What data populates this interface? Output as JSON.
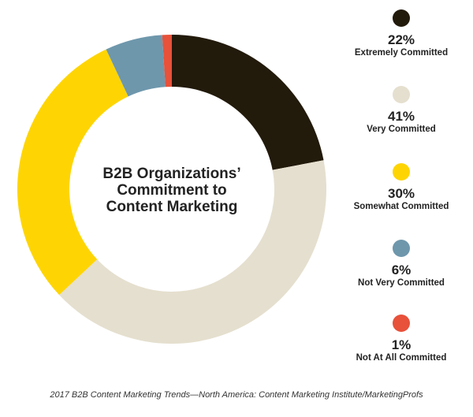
{
  "chart_data": {
    "type": "pie",
    "title": "B2B Organizations’ Commitment to Content Marketing",
    "categories": [
      "Extremely Committed",
      "Very Committed",
      "Somewhat Committed",
      "Not Very Committed",
      "Not At All Committed"
    ],
    "values": [
      22,
      41,
      30,
      6,
      1
    ],
    "value_labels": [
      "22%",
      "41%",
      "30%",
      "6%",
      "1%"
    ],
    "colors": [
      "#221a0b",
      "#e5dfcf",
      "#fed503",
      "#6e97ac",
      "#e8513a"
    ],
    "donut": true,
    "legend_position": "right"
  },
  "center_title": {
    "line1": "B2B Organizations’",
    "line2": "Commitment to",
    "line3": "Content Marketing"
  },
  "source": "2017 B2B Content Marketing Trends—North America:  Content Marketing Institute/MarketingProfs"
}
